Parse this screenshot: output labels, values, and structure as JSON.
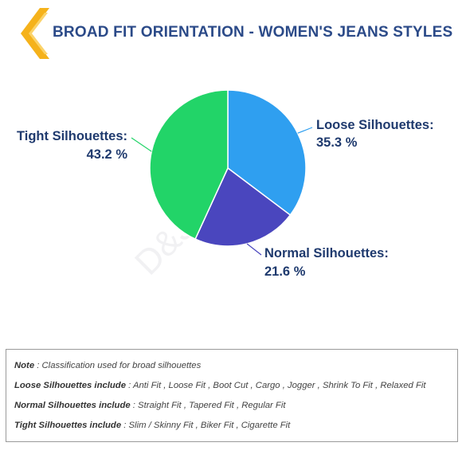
{
  "title": "BROAD FIT ORIENTATION - WOMEN'S JEANS STYLES",
  "colors": {
    "title": "#2b4a88",
    "chevron_outer": "#f5b21b",
    "chevron_inner": "#fbd36a",
    "loose": "#2f9ff0",
    "normal": "#4a46be",
    "tight": "#22d468"
  },
  "chart_data": {
    "type": "pie",
    "slices": [
      {
        "name": "Loose Silhouettes:",
        "value": 35.3,
        "label": "35.3 %",
        "color": "#2f9ff0"
      },
      {
        "name": "Normal Silhouettes:",
        "value": 21.6,
        "label": "21.6 %",
        "color": "#4a46be"
      },
      {
        "name": "Tight Silhouettes:",
        "value": 43.2,
        "label": "43.2 %",
        "color": "#22d468"
      }
    ]
  },
  "watermark": "D&J Reports",
  "notes": [
    {
      "key": "Note",
      "text": " : Classification used for broad silhouettes"
    },
    {
      "key": "Loose Silhouettes include",
      "text": " : Anti Fit , Loose Fit , Boot Cut , Cargo , Jogger , Shrink To Fit , Relaxed Fit"
    },
    {
      "key": "Normal Silhouettes include",
      "text": " : Straight Fit , Tapered Fit , Regular Fit"
    },
    {
      "key": "Tight Silhouettes include",
      "text": " : Slim / Skinny Fit , Biker Fit , Cigarette Fit"
    }
  ]
}
